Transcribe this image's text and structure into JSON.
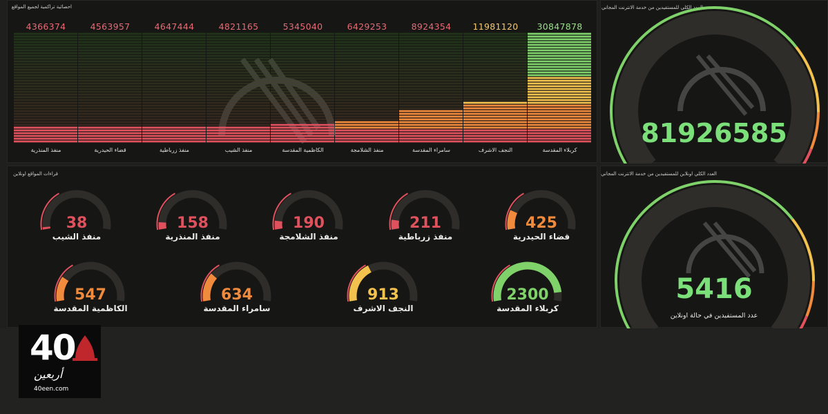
{
  "panels": {
    "bars_title": "احصائية تراكمية لجميع المواقع",
    "total_title": "العدد الكلي للمستفيدين من خدمة الانترنت المجاني",
    "sites_title": "قراءات المواقع اونلاين",
    "online_title": "العدد الكلي اونلاين للمستفيدين من خدمة الانترنت المجاني"
  },
  "chart_data": {
    "type": "bar",
    "title": "احصائية تراكمية لجميع المواقع",
    "categories": [
      "منفذ المنذرية",
      "قضاء الحيدرية",
      "منفذ زرباطية",
      "منفذ الشيب",
      "الكاظمية المقدسة",
      "منفذ الشلامجة",
      "سامراء المقدسة",
      "النجف الاشرف",
      "كربلاء المقدسة"
    ],
    "values": [
      4366374,
      4563957,
      4647444,
      4821165,
      5345040,
      6429253,
      8924354,
      11981120,
      30847878
    ],
    "value_labels": [
      "4366374",
      "4563957",
      "4647444",
      "4821165",
      "5345040",
      "6429253",
      "8924354",
      "11981120",
      "30847878"
    ],
    "ylim": [
      0,
      31000000
    ],
    "colors": {
      "low": "#e0515e",
      "mid": "#f08a3c",
      "high": "#f2c14e",
      "top": "#7fd16a",
      "dim": "#3b4a2e"
    }
  },
  "total": {
    "value": "81926585",
    "value_num": 81926585,
    "max": 100000000
  },
  "sites": [
    {
      "name": "منفذ الشيب",
      "value": "38",
      "num": 38,
      "color": "#e0515e"
    },
    {
      "name": "منفذ المنذرية",
      "value": "158",
      "num": 158,
      "color": "#e0515e"
    },
    {
      "name": "منفذ الشلامجة",
      "value": "190",
      "num": 190,
      "color": "#e0515e"
    },
    {
      "name": "منفذ زرباطية",
      "value": "211",
      "num": 211,
      "color": "#e0515e"
    },
    {
      "name": "قضاء الحيدرية",
      "value": "425",
      "num": 425,
      "color": "#f08a3c"
    },
    {
      "name": "الكاظمية المقدسة",
      "value": "547",
      "num": 547,
      "color": "#f08a3c"
    },
    {
      "name": "سامراء المقدسة",
      "value": "634",
      "num": 634,
      "color": "#f08a3c"
    },
    {
      "name": "النجف الاشرف",
      "value": "913",
      "num": 913,
      "color": "#f2c14e"
    },
    {
      "name": "كربلاء المقدسة",
      "value": "2300",
      "num": 2300,
      "color": "#7fd16a"
    }
  ],
  "sites_gauge_max": 2500,
  "online": {
    "value": "5416",
    "value_num": 5416,
    "max": 5700,
    "caption": "عدد المستفيدين في حالة اونلاين"
  },
  "logo": {
    "number": "40",
    "arabic": "أربعين",
    "url": "40een.com"
  }
}
